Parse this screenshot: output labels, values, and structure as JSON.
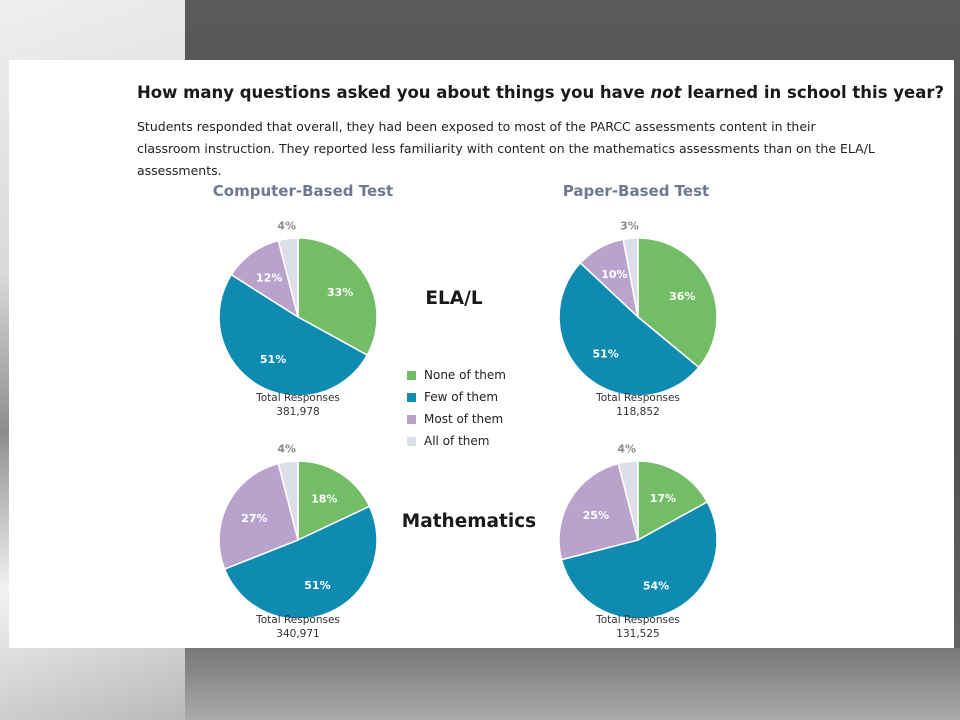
{
  "title": {
    "part1": "How many questions asked you about things you have ",
    "emphasis": "not",
    "part2": " learned in school this year?"
  },
  "description": "Students responded that overall, they had been exposed to most of the PARCC assessments content in their classroom instruction. They reported less familiarity with content on the mathematics assessments than on the ELA/L assessments.",
  "columns": [
    "Computer-Based Test",
    "Paper-Based Test"
  ],
  "rows": [
    "ELA/L",
    "Mathematics"
  ],
  "total_label": "Total Responses",
  "legend": [
    {
      "label": "None of them",
      "color": "#72bd65"
    },
    {
      "label": "Few of them",
      "color": "#0f8ab0"
    },
    {
      "label": "Most of them",
      "color": "#b9a3cc"
    },
    {
      "label": "All of them",
      "color": "#dcdfe8"
    }
  ],
  "chart_data": [
    {
      "type": "pie",
      "title": "Computer-Based Test",
      "subtitle": "ELA/L",
      "categories": [
        "None of them",
        "Few of them",
        "Most of them",
        "All of them"
      ],
      "values": [
        33,
        51,
        12,
        4
      ],
      "labels": [
        "33%",
        "51%",
        "12%",
        "4%"
      ],
      "total": "381,978"
    },
    {
      "type": "pie",
      "title": "Paper-Based Test",
      "subtitle": "ELA/L",
      "categories": [
        "None of them",
        "Few of them",
        "Most of them",
        "All of them"
      ],
      "values": [
        36,
        51,
        10,
        3
      ],
      "labels": [
        "36%",
        "51%",
        "10%",
        "3%"
      ],
      "total": "118,852"
    },
    {
      "type": "pie",
      "title": "Computer-Based Test",
      "subtitle": "Mathematics",
      "categories": [
        "None of them",
        "Few of them",
        "Most of them",
        "All of them"
      ],
      "values": [
        18,
        51,
        27,
        4
      ],
      "labels": [
        "18%",
        "51%",
        "27%",
        "4%"
      ],
      "total": "340,971"
    },
    {
      "type": "pie",
      "title": "Paper-Based Test",
      "subtitle": "Mathematics",
      "categories": [
        "None of them",
        "Few of them",
        "Most of them",
        "All of them"
      ],
      "values": [
        17,
        54,
        25,
        4
      ],
      "labels": [
        "17%",
        "54%",
        "25%",
        "4%"
      ],
      "total": "131,525"
    }
  ]
}
